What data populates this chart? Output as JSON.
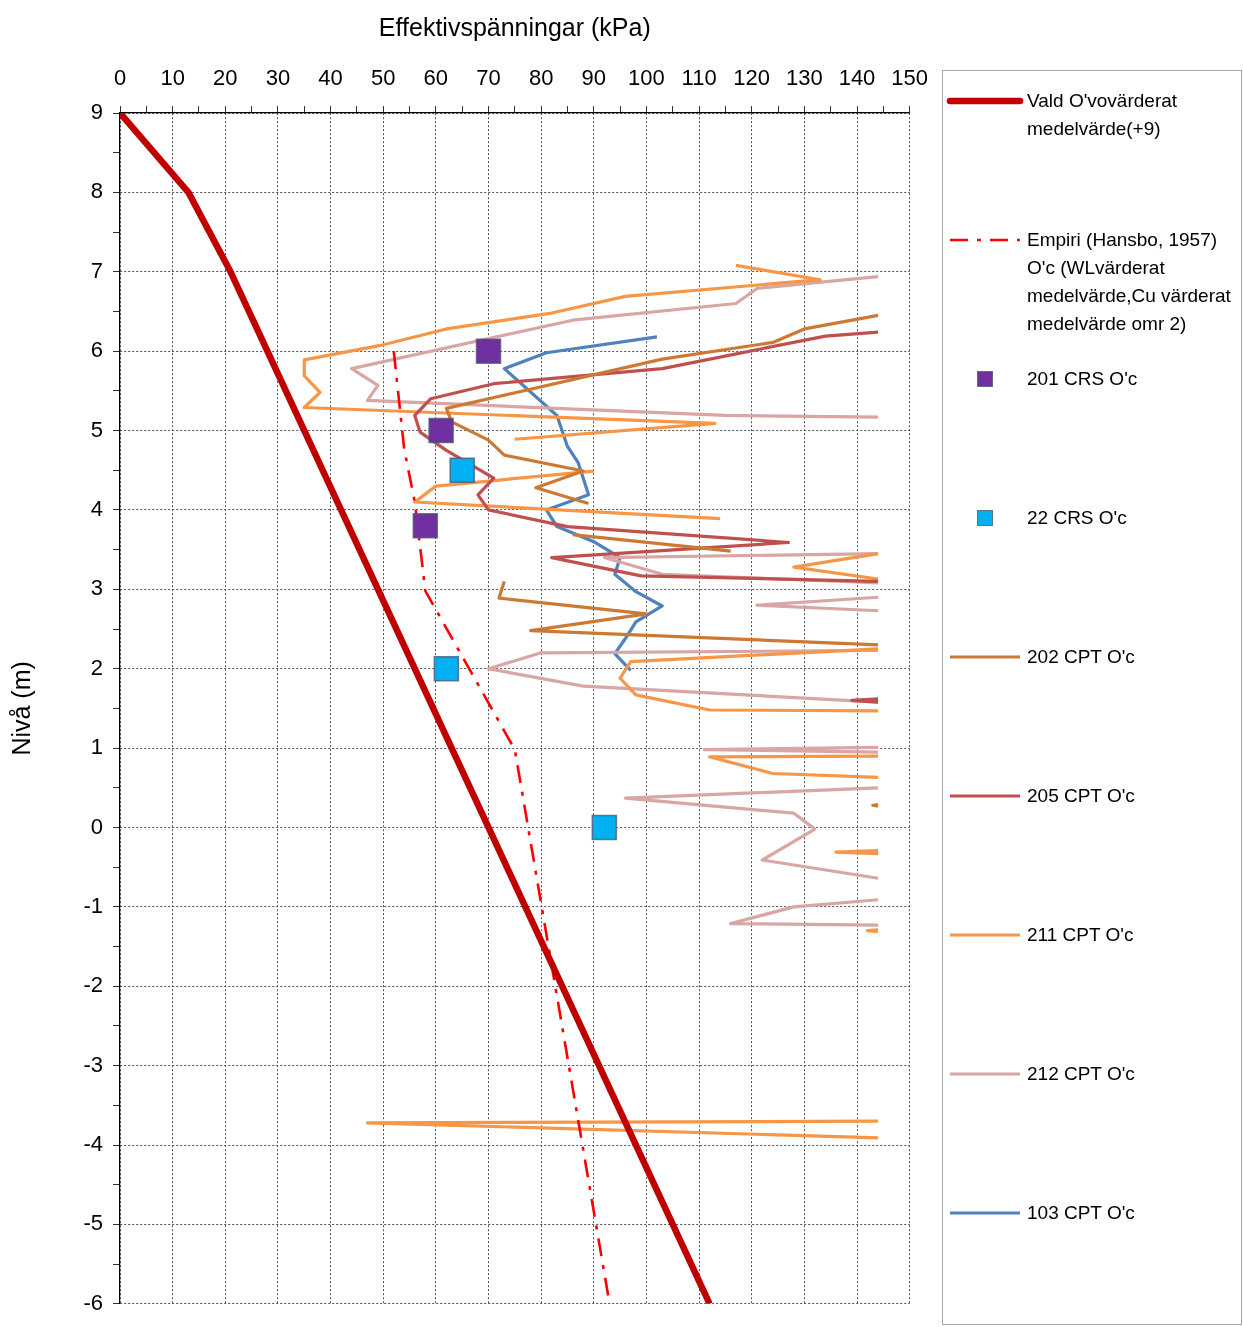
{
  "chart_data": {
    "type": "line",
    "xlabel": "Effektivspänningar (kPa)",
    "ylabel": "Nivå (m)",
    "xlim": [
      0,
      150
    ],
    "xticks": [
      0,
      {
        "value": 5,
        "label": null
      },
      10,
      {
        "value": 15,
        "label": null
      },
      20,
      {
        "value": 25,
        "label": null
      },
      30,
      {
        "value": 35,
        "label": null
      },
      40,
      {
        "value": 45,
        "label": null
      },
      50,
      {
        "value": 55,
        "label": null
      },
      60,
      {
        "value": 65,
        "label": null
      },
      70,
      {
        "value": 75,
        "label": null
      },
      80,
      {
        "value": 85,
        "label": null
      },
      90,
      {
        "value": 95,
        "label": null
      },
      100,
      {
        "value": 105,
        "label": null
      },
      110,
      {
        "value": 115,
        "label": null
      },
      120,
      {
        "value": 125,
        "label": null
      },
      130,
      {
        "value": 135,
        "label": null
      },
      140,
      {
        "value": 145,
        "label": null
      },
      150
    ],
    "ylim": [
      -6,
      9
    ],
    "yticks": [
      -6,
      {
        "value": -5.5,
        "label": null
      },
      -5,
      {
        "value": -4.5,
        "label": null
      },
      -4,
      {
        "value": -3.5,
        "label": null
      },
      -3,
      {
        "value": -2.5,
        "label": null
      },
      -2,
      {
        "value": -1.5,
        "label": null
      },
      -1,
      {
        "value": -0.5,
        "label": null
      },
      0,
      {
        "value": 0.5,
        "label": null
      },
      1,
      {
        "value": 1.5,
        "label": null
      },
      2,
      {
        "value": 2.5,
        "label": null
      },
      3,
      {
        "value": 3.5,
        "label": null
      },
      4,
      {
        "value": 4.5,
        "label": null
      },
      5,
      {
        "value": 5.5,
        "label": null
      },
      6,
      {
        "value": 6.5,
        "label": null
      },
      7,
      {
        "value": 7.5,
        "label": null
      },
      8,
      {
        "value": 8.5,
        "label": null
      },
      9
    ],
    "grid": true,
    "legend": "right",
    "marker": "none",
    "series": [
      {
        "name": "Vald O'vovärderat medelvärde(+9)",
        "color": "#c00000",
        "x": [
          0,
          13,
          21,
          112
        ],
        "values": [
          9,
          8,
          7,
          -6
        ]
      },
      {
        "name": "Empiri (Hansbo, 1957) O'c (WLvärderat medelvärde,Cu värderat medelvärde omr 2)",
        "color": "#ff0000",
        "line_style": "dashdot",
        "x": [
          52,
          54,
          56,
          58,
          75,
          93
        ],
        "values": [
          6,
          4.76,
          4.1,
          2.98,
          0.98,
          -6
        ]
      },
      {
        "name": "201 CRS O'c",
        "type": "scatter",
        "marker": "square",
        "color": "#7030a0",
        "x": [
          70,
          61,
          58
        ],
        "values": [
          6,
          5,
          3.8
        ]
      },
      {
        "name": "22 CRS O'c",
        "type": "scatter",
        "marker": "square",
        "color": "#00b0f0",
        "x": [
          65,
          62,
          92
        ],
        "values": [
          4.5,
          2,
          0
        ]
      },
      {
        "name": "202 CPT O'c",
        "color": "#cc7a33",
        "x": [
          144,
          130,
          124,
          103,
          62,
          63,
          70,
          73,
          88,
          79,
          89,
          null,
          86,
          116,
          null,
          73,
          72,
          100,
          78,
          144,
          null,
          144,
          143,
          144
        ],
        "values": [
          6.45,
          6.28,
          6.11,
          5.9,
          5.28,
          5.11,
          4.88,
          4.69,
          4.49,
          4.28,
          4.08,
          null,
          3.69,
          3.48,
          null,
          3.1,
          2.89,
          2.69,
          2.48,
          2.3,
          null,
          0.29,
          0.28,
          0.27
        ]
      },
      {
        "name": "205 CPT O'c",
        "color": "#c0504d",
        "x": [
          144,
          134,
          103,
          71,
          59,
          56,
          57,
          62,
          71,
          68,
          70,
          85,
          127,
          82,
          99,
          144,
          null,
          144,
          139,
          144
        ],
        "values": [
          6.24,
          6.19,
          5.78,
          5.59,
          5.4,
          5.19,
          4.98,
          4.75,
          4.4,
          4.19,
          4.0,
          3.79,
          3.59,
          3.4,
          3.17,
          3.1,
          null,
          1.62,
          1.6,
          1.58
        ]
      },
      {
        "name": "211 CPT O'c",
        "color": "#f79646",
        "x": [
          117,
          133,
          96,
          82,
          62,
          50,
          35,
          35,
          38,
          35,
          113,
          75,
          null,
          90,
          60,
          56,
          114,
          null,
          144,
          128,
          144,
          null,
          144,
          97,
          95,
          98,
          112,
          144,
          null,
          144,
          112,
          124,
          144,
          null,
          144,
          136,
          144,
          null,
          144,
          142,
          144,
          null,
          144,
          47,
          144
        ],
        "values": [
          7.08,
          6.9,
          6.69,
          6.48,
          6.28,
          6.08,
          5.89,
          5.69,
          5.48,
          5.29,
          5.09,
          4.89,
          null,
          4.49,
          4.3,
          4.1,
          3.89,
          null,
          3.45,
          3.28,
          3.13,
          null,
          2.25,
          2.09,
          1.88,
          1.67,
          1.48,
          1.47,
          null,
          0.9,
          0.89,
          0.68,
          0.63,
          null,
          -0.29,
          -0.31,
          -0.33,
          null,
          -1.29,
          -1.3,
          -1.31,
          null,
          -3.7,
          -3.72,
          -3.91
        ]
      },
      {
        "name": "212 CPT O'c",
        "color": "#d8a6a5",
        "x": [
          144,
          121,
          117,
          86,
          44,
          49,
          47,
          115,
          144,
          null,
          144,
          92,
          103,
          144,
          null,
          144,
          121,
          144,
          null,
          144,
          80,
          70,
          88,
          144,
          null,
          144,
          111,
          144,
          null,
          144,
          96,
          128,
          132,
          122,
          144,
          null,
          144,
          128,
          116,
          144
        ],
        "values": [
          6.94,
          6.79,
          6.6,
          6.39,
          5.78,
          5.57,
          5.38,
          5.19,
          5.17,
          null,
          3.45,
          3.4,
          3.19,
          3.08,
          null,
          2.9,
          2.8,
          2.73,
          null,
          2.23,
          2.2,
          2.0,
          1.78,
          1.58,
          null,
          1.01,
          0.98,
          0.95,
          null,
          0.5,
          0.37,
          0.18,
          -0.02,
          -0.41,
          -0.64,
          null,
          -0.91,
          -1.0,
          -1.21,
          -1.23
        ]
      },
      {
        "name": "103 CPT O'c",
        "color": "#4f81bd",
        "x": [
          102,
          81,
          73,
          83,
          85,
          87,
          88,
          89,
          81,
          83,
          90,
          95,
          94,
          98,
          103,
          98,
          96,
          94,
          97
        ],
        "values": [
          6.18,
          5.98,
          5.78,
          5.19,
          4.8,
          4.6,
          4.4,
          4.19,
          4.0,
          3.79,
          3.6,
          3.4,
          3.19,
          2.97,
          2.79,
          2.59,
          2.38,
          2.19,
          1.98
        ]
      }
    ]
  }
}
